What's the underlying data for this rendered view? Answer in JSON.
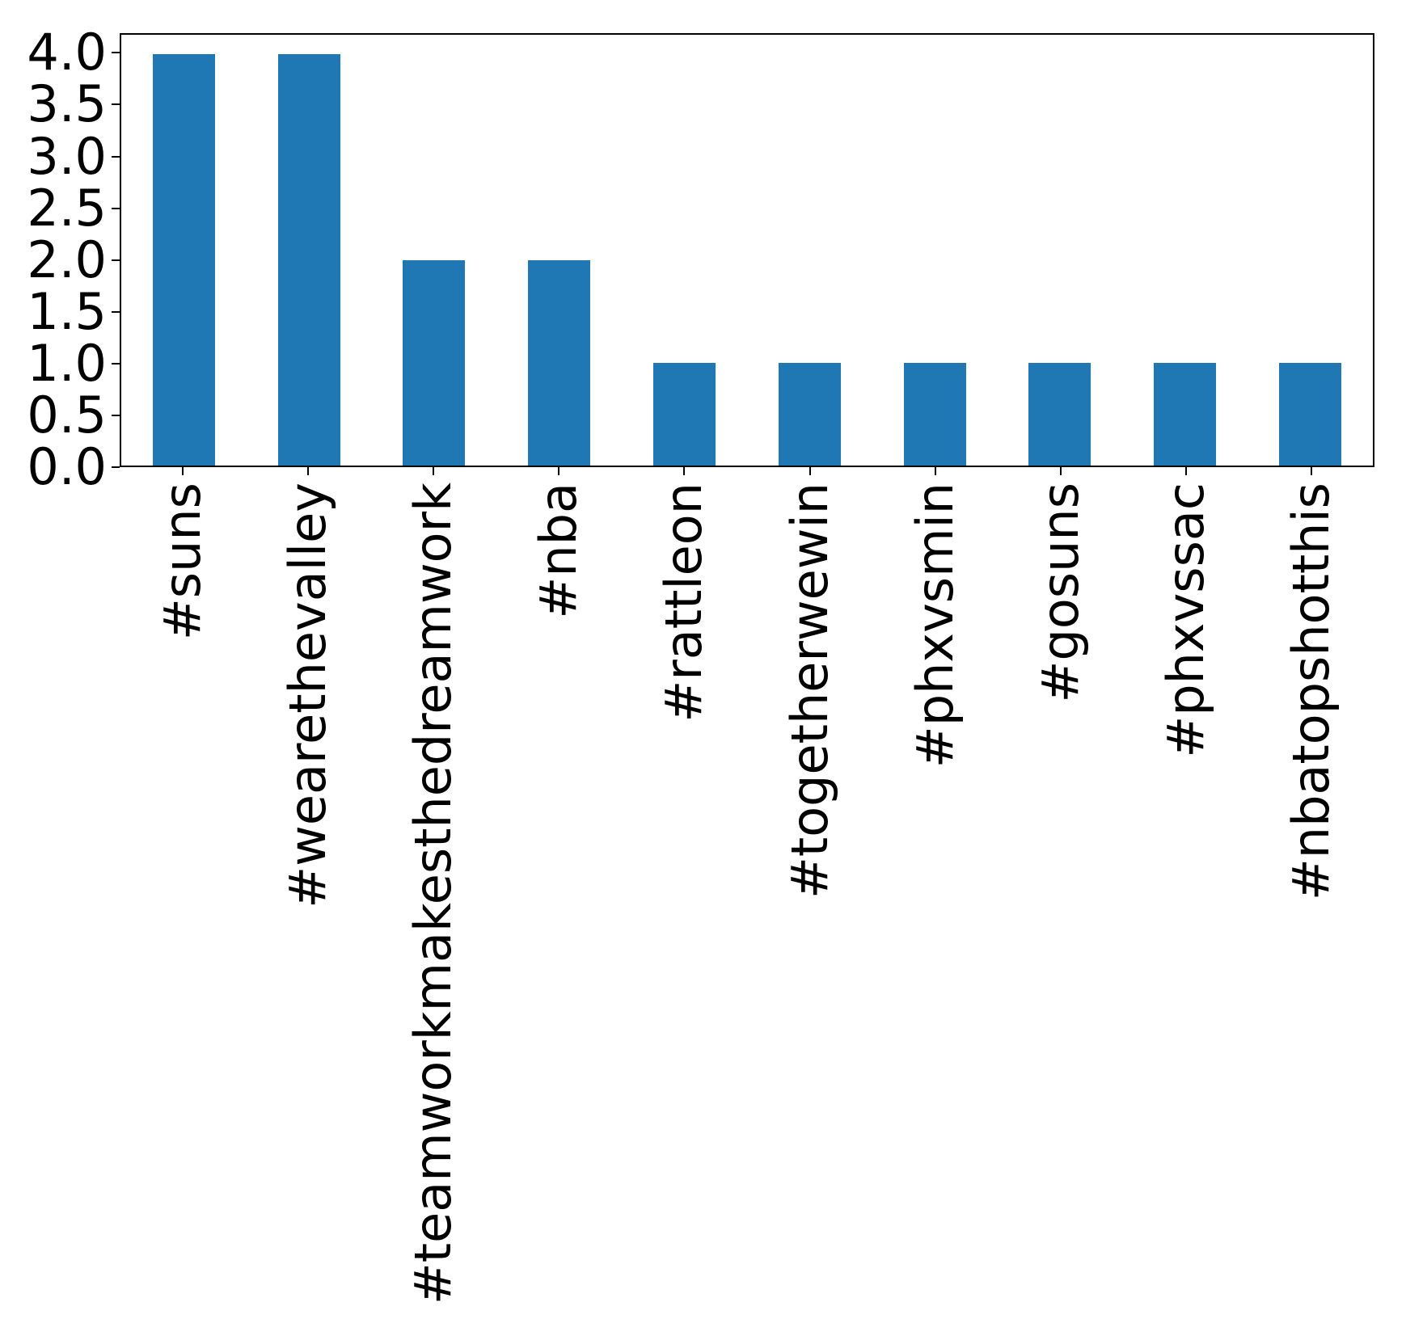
{
  "chart_data": {
    "type": "bar",
    "title": "",
    "xlabel": "",
    "ylabel": "",
    "categories": [
      "#suns",
      "#wearethevalley",
      "#teamworkmakesthedreamwork",
      "#nba",
      "#rattleon",
      "#togetherwewin",
      "#phxvsmin",
      "#gosuns",
      "#phxvssac",
      "#nbatopshotthis"
    ],
    "values": [
      4,
      4,
      2,
      2,
      1,
      1,
      1,
      1,
      1,
      1
    ],
    "ylim": [
      0,
      4.19
    ],
    "yticks": [
      4.0,
      3.5,
      3.0,
      2.5,
      2.0,
      1.5,
      1.0,
      0.5,
      0.0
    ],
    "ytick_labels": [
      "4.0",
      "3.5",
      "3.0",
      "2.5",
      "2.0",
      "1.5",
      "1.0",
      "0.5",
      "0.0"
    ],
    "x_tick_rotation_deg": 90,
    "bar_color": "#1f77b4",
    "axis_color": "#000000",
    "background_color": "#ffffff",
    "grid": false,
    "legend": null
  }
}
